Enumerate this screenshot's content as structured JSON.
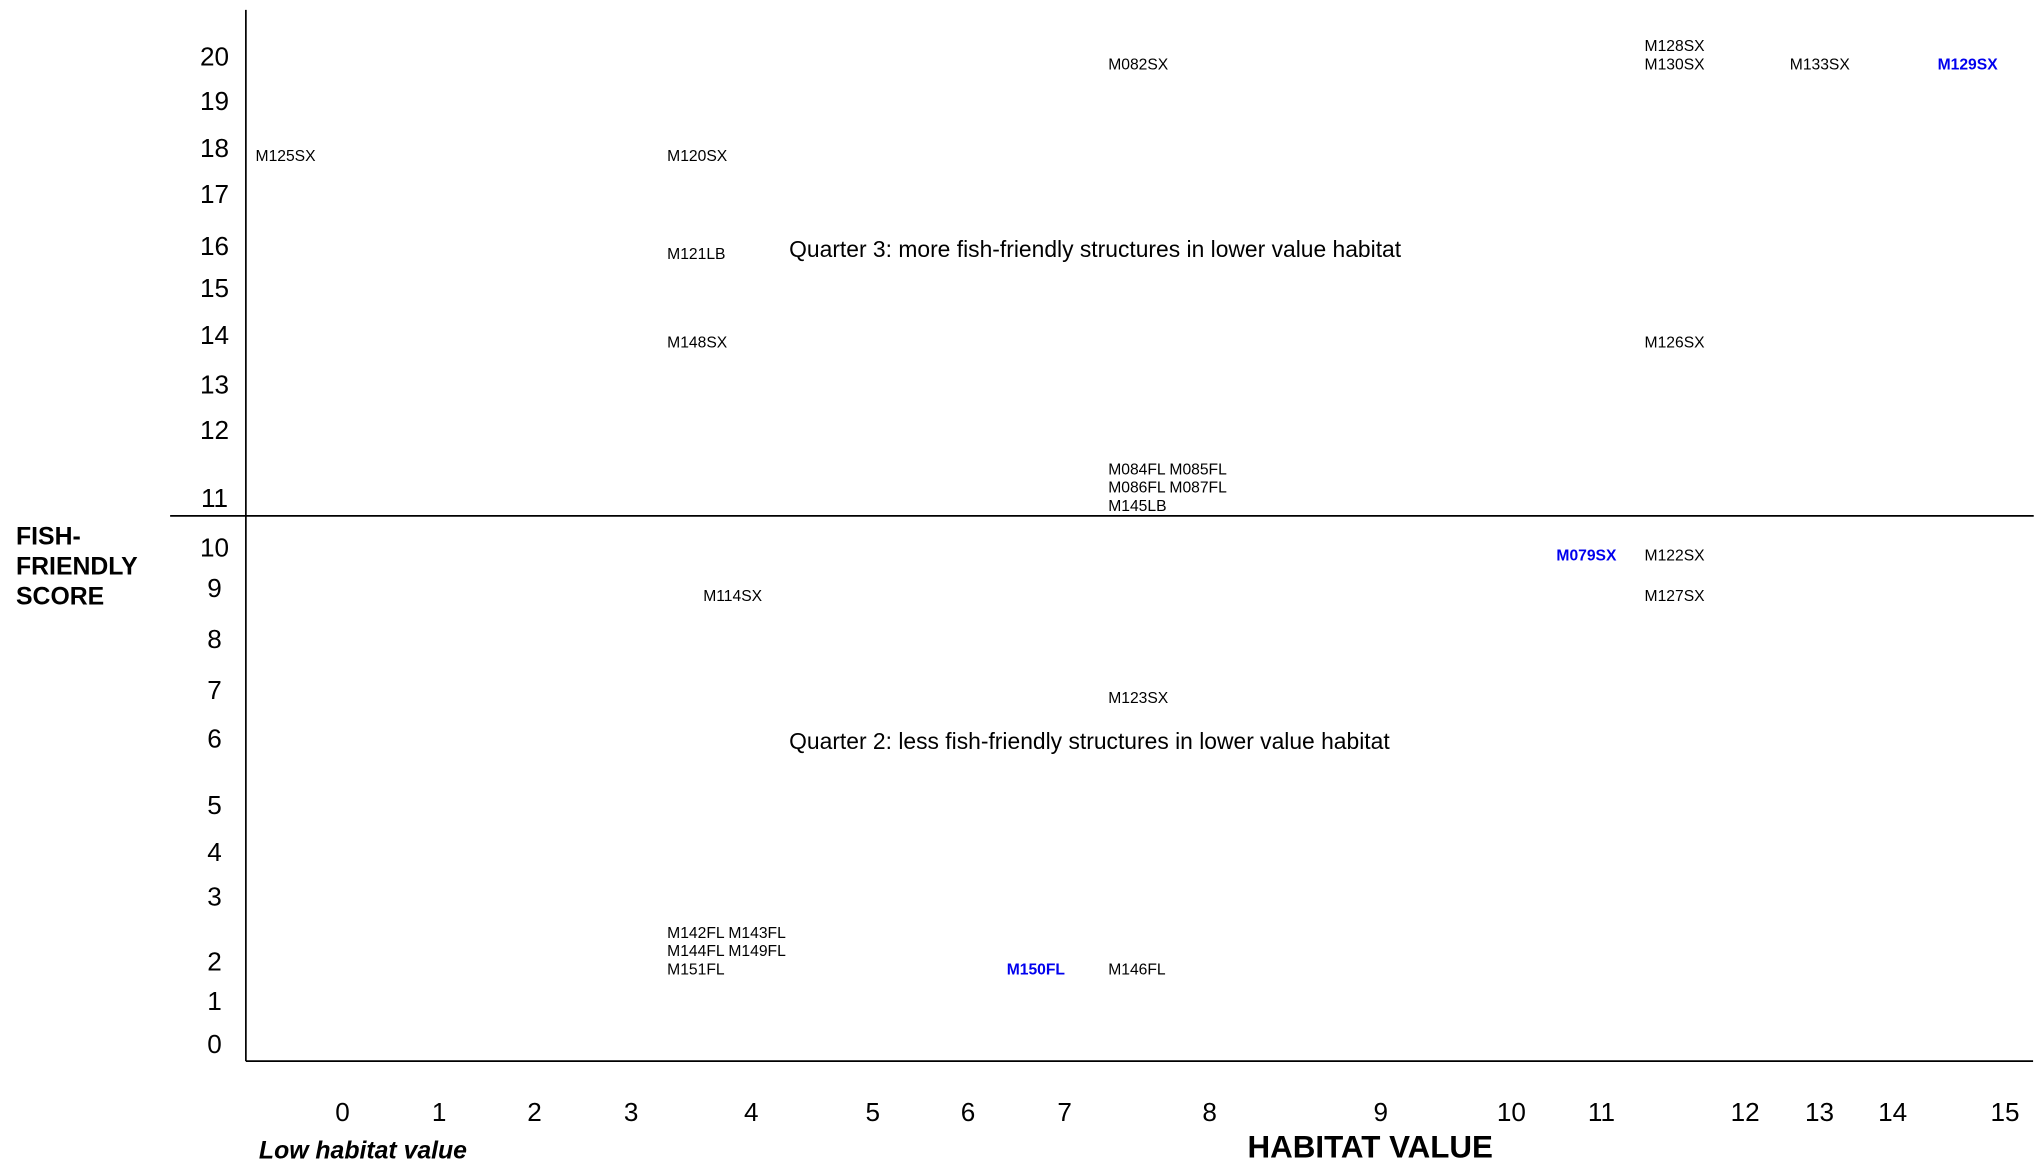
{
  "chart_data": {
    "type": "scatter",
    "x_label": "HABITAT   VALUE",
    "x_note": "Low habitat value",
    "y_label": [
      "FISH-",
      "FRIENDLY",
      "SCORE"
    ],
    "annotations": [
      "Quarter 3: more fish-friendly structures in lower value habitat",
      "Quarter 2: less fish-friendly structures in lower value habitat"
    ],
    "xlim": [
      -1,
      15.25
    ],
    "ylim": [
      -0.35,
      21.1
    ],
    "xticks": [
      0,
      1,
      2,
      3,
      4,
      5,
      6,
      7,
      8,
      9,
      10,
      11,
      12,
      13,
      14,
      15
    ],
    "yticks": [
      0,
      1,
      2,
      3,
      4,
      5,
      6,
      7,
      8,
      9,
      10,
      11,
      12,
      13,
      14,
      15,
      16,
      17,
      18,
      19,
      20
    ],
    "color": "#000000",
    "points": [
      {
        "labels": [
          "M082SX"
        ],
        "x": 7.3,
        "y": 20
      },
      {
        "labels": [
          "M128SX",
          "M130SX"
        ],
        "x": 11.3,
        "y": 20
      },
      {
        "labels": [
          "M133SX"
        ],
        "x": 12.6,
        "y": 20
      },
      {
        "labels": [
          "M129SX"
        ],
        "x": 14.4,
        "y": 20,
        "color": "#0000ee",
        "font_weight": "bold"
      },
      {
        "labels": [
          "M125SX"
        ],
        "x": -0.9,
        "y": 18
      },
      {
        "labels": [
          "M120SX"
        ],
        "x": 3.3,
        "y": 18
      },
      {
        "labels": [
          "M121LB"
        ],
        "x": 3.3,
        "y": 16
      },
      {
        "labels": [
          "M148SX"
        ],
        "x": 3.3,
        "y": 14
      },
      {
        "labels": [
          "M126SX"
        ],
        "x": 11.3,
        "y": 14
      },
      {
        "labels": [
          "M084FL M085FL",
          "M086FL M087FL",
          "M145LB"
        ],
        "x": 7.3,
        "y": 11
      },
      {
        "labels": [
          "M079SX"
        ],
        "x": 10.5,
        "y": 10,
        "color": "#0000ee",
        "font_weight": "bold"
      },
      {
        "labels": [
          "M122SX"
        ],
        "x": 11.3,
        "y": 10
      },
      {
        "labels": [
          "M114SX"
        ],
        "x": 3.6,
        "y": 9
      },
      {
        "labels": [
          "M127SX"
        ],
        "x": 11.3,
        "y": 9
      },
      {
        "labels": [
          "M123SX"
        ],
        "x": 7.3,
        "y": 7
      },
      {
        "labels": [
          "M142FL M143FL",
          "M144FL M149FL",
          "M151FL"
        ],
        "x": 3.3,
        "y": 2
      },
      {
        "labels": [
          "M150FL"
        ],
        "x": 6.4,
        "y": 2,
        "color": "#0000ee",
        "font_weight": "bold"
      },
      {
        "labels": [
          "M146FL"
        ],
        "x": 7.3,
        "y": 2
      }
    ]
  }
}
